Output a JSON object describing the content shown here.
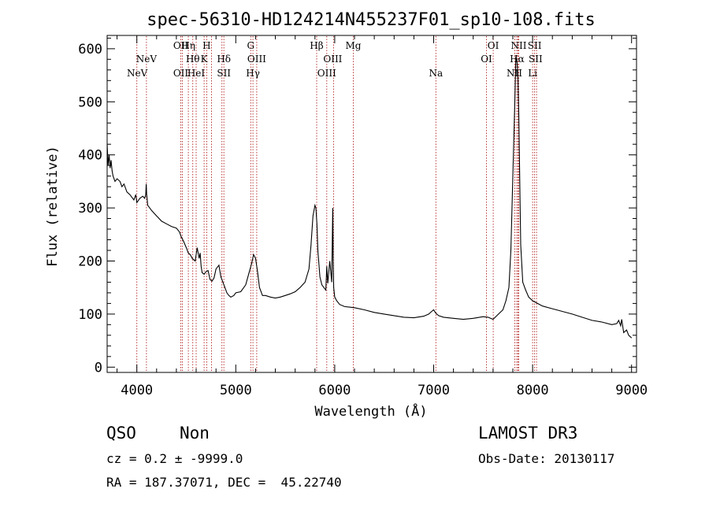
{
  "chart_data": {
    "type": "line",
    "title": "spec-56310-HD124214N455237F01_sp10-108.fits",
    "xlabel": "Wavelength (Å)",
    "ylabel": "Flux (relative)",
    "xlim": [
      3700,
      9050
    ],
    "ylim": [
      -10,
      625
    ],
    "xticks": [
      4000,
      5000,
      6000,
      7000,
      8000,
      9000
    ],
    "yticks": [
      0,
      100,
      200,
      300,
      400,
      500,
      600
    ],
    "grid": false,
    "series": [
      {
        "x": [
          3700,
          3710,
          3720,
          3730,
          3740,
          3750,
          3760,
          3780,
          3800,
          3830,
          3850,
          3870,
          3900,
          3930,
          3950,
          3970,
          3990,
          4000,
          4030,
          4060,
          4080,
          4090,
          4095,
          4100,
          4105,
          4110,
          4150,
          4200,
          4250,
          4300,
          4350,
          4400,
          4430,
          4450,
          4470,
          4500,
          4520,
          4540,
          4560,
          4590,
          4610,
          4630,
          4640,
          4650,
          4660,
          4680,
          4700,
          4720,
          4740,
          4760,
          4780,
          4800,
          4830,
          4850,
          4870,
          4890,
          4910,
          4930,
          4950,
          4980,
          5000,
          5050,
          5100,
          5130,
          5160,
          5180,
          5200,
          5220,
          5240,
          5270,
          5300,
          5350,
          5400,
          5450,
          5500,
          5550,
          5600,
          5650,
          5700,
          5740,
          5760,
          5780,
          5800,
          5810,
          5820,
          5830,
          5850,
          5870,
          5890,
          5910,
          5920,
          5930,
          5950,
          5970,
          5980,
          5985,
          5990,
          6000,
          6020,
          6050,
          6100,
          6150,
          6200,
          6300,
          6400,
          6500,
          6600,
          6700,
          6800,
          6900,
          6950,
          6980,
          7000,
          7020,
          7050,
          7100,
          7200,
          7300,
          7400,
          7500,
          7550,
          7600,
          7650,
          7700,
          7730,
          7760,
          7780,
          7800,
          7820,
          7830,
          7840,
          7850,
          7860,
          7870,
          7880,
          7900,
          7930,
          7960,
          8000,
          8050,
          8100,
          8200,
          8300,
          8400,
          8500,
          8600,
          8700,
          8800,
          8850,
          8870,
          8890,
          8900,
          8920,
          8950,
          8970,
          9000
        ],
        "y": [
          420,
          380,
          400,
          375,
          390,
          370,
          360,
          350,
          355,
          350,
          340,
          345,
          330,
          325,
          320,
          315,
          325,
          310,
          318,
          322,
          318,
          325,
          345,
          325,
          315,
          305,
          295,
          285,
          275,
          270,
          265,
          262,
          255,
          245,
          238,
          225,
          215,
          212,
          205,
          200,
          225,
          205,
          215,
          190,
          178,
          175,
          180,
          182,
          165,
          162,
          168,
          185,
          192,
          170,
          160,
          150,
          140,
          135,
          132,
          135,
          140,
          142,
          155,
          175,
          195,
          212,
          205,
          180,
          150,
          135,
          135,
          132,
          130,
          132,
          135,
          138,
          142,
          150,
          160,
          185,
          230,
          285,
          305,
          300,
          270,
          220,
          170,
          155,
          150,
          145,
          190,
          158,
          200,
          160,
          300,
          200,
          150,
          132,
          125,
          118,
          114,
          113,
          112,
          108,
          103,
          100,
          97,
          94,
          93,
          96,
          100,
          105,
          108,
          102,
          97,
          94,
          92,
          90,
          92,
          95,
          94,
          90,
          99,
          108,
          125,
          150,
          220,
          360,
          500,
          585,
          580,
          555,
          480,
          350,
          230,
          160,
          145,
          132,
          125,
          120,
          115,
          110,
          105,
          100,
          94,
          88,
          85,
          80,
          82,
          88,
          78,
          90,
          65,
          70,
          60,
          55
        ]
      }
    ],
    "lines": [
      {
        "name": "NeV",
        "wl": 4004,
        "row": 3
      },
      {
        "name": "NeV",
        "wl": 4097,
        "row": 2
      },
      {
        "name": "OII",
        "wl": 4444,
        "row": 1
      },
      {
        "name": "OII",
        "wl": 4444,
        "row": 3
      },
      {
        "name": "Hη",
        "wl": 4521,
        "row": 1
      },
      {
        "name": "Hθ",
        "wl": 4565,
        "row": 2
      },
      {
        "name": "HeI",
        "wl": 4600,
        "row": 3
      },
      {
        "name": "H",
        "wl": 4706,
        "row": 1
      },
      {
        "name": "K",
        "wl": 4680,
        "row": 2
      },
      {
        "name": "Hδ",
        "wl": 4880,
        "row": 2
      },
      {
        "name": "SII",
        "wl": 4880,
        "row": 3
      },
      {
        "name": "G",
        "wl": 5151,
        "row": 1
      },
      {
        "name": "OIII",
        "wl": 5212,
        "row": 2
      },
      {
        "name": "Hγ",
        "wl": 5174,
        "row": 3
      },
      {
        "name": "Hβ",
        "wl": 5818,
        "row": 1
      },
      {
        "name": "OIII",
        "wl": 5980,
        "row": 2
      },
      {
        "name": "OIII",
        "wl": 5920,
        "row": 3
      },
      {
        "name": "Mg",
        "wl": 6188,
        "row": 1
      },
      {
        "name": "Na",
        "wl": 7022,
        "row": 3
      },
      {
        "name": "OI",
        "wl": 7602,
        "row": 1
      },
      {
        "name": "OI",
        "wl": 7533,
        "row": 2
      },
      {
        "name": "NII",
        "wl": 7860,
        "row": 1
      },
      {
        "name": "SII",
        "wl": 8020,
        "row": 1
      },
      {
        "name": "Hα",
        "wl": 7843,
        "row": 2
      },
      {
        "name": "SII",
        "wl": 8030,
        "row": 2
      },
      {
        "name": "NII",
        "wl": 7816,
        "row": 3
      },
      {
        "name": "Li",
        "wl": 8000,
        "row": 3
      }
    ],
    "vlines": [
      4000,
      4097,
      4444,
      4460,
      4521,
      4565,
      4600,
      4680,
      4706,
      4755,
      4860,
      4880,
      5151,
      5174,
      5212,
      5818,
      5920,
      5988,
      6188,
      7022,
      7533,
      7602,
      7820,
      7840,
      7850,
      7860,
      8000,
      8020,
      8040
    ]
  },
  "info": {
    "class": "QSO",
    "subclass": "Non",
    "survey": "LAMOST DR3",
    "cz": "cz = 0.2 ± -9999.0",
    "obs_date": "Obs-Date: 20130117",
    "radec": "RA = 187.37071, DEC =  45.22740"
  },
  "colors": {
    "spectrum": "#000000",
    "line_markers": "#b22222"
  }
}
